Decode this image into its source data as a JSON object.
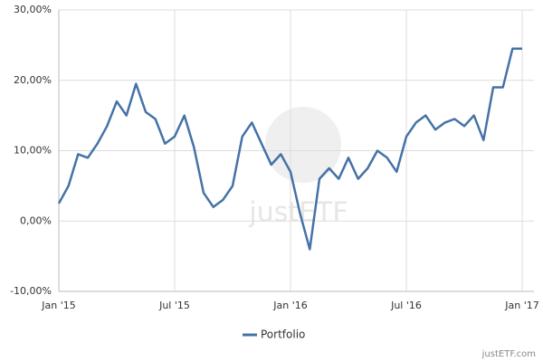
{
  "chart_data": {
    "type": "line",
    "x": [
      "2015-01",
      "2015-01",
      "2015-02",
      "2015-02",
      "2015-03",
      "2015-03",
      "2015-04",
      "2015-04",
      "2015-05",
      "2015-05",
      "2015-06",
      "2015-06",
      "2015-07",
      "2015-07",
      "2015-08",
      "2015-08",
      "2015-09",
      "2015-09",
      "2015-10",
      "2015-10",
      "2015-11",
      "2015-11",
      "2015-12",
      "2015-12",
      "2016-01",
      "2016-01",
      "2016-02",
      "2016-02",
      "2016-03",
      "2016-03",
      "2016-04",
      "2016-04",
      "2016-05",
      "2016-05",
      "2016-06",
      "2016-06",
      "2016-07",
      "2016-07",
      "2016-08",
      "2016-08",
      "2016-09",
      "2016-09",
      "2016-10",
      "2016-10",
      "2016-11",
      "2016-11",
      "2016-12",
      "2016-12",
      "2017-01"
    ],
    "series": [
      {
        "name": "Portfolio",
        "color": "#4572a7",
        "values": [
          2.5,
          5,
          9.5,
          9,
          11,
          13.5,
          17,
          15,
          19.5,
          15.5,
          14.5,
          11,
          12,
          15,
          10.5,
          4,
          2,
          3,
          5,
          12,
          14,
          11,
          8,
          9.5,
          7,
          1,
          -4,
          6,
          7.5,
          6,
          9,
          6,
          7.5,
          10,
          9,
          7,
          12,
          14,
          15,
          13,
          14,
          14.5,
          13.5,
          15,
          11.5,
          19,
          19,
          24.5,
          24.5
        ]
      }
    ],
    "ylim": [
      -10,
      30
    ],
    "yticks": [
      {
        "value": -10,
        "label": "-10,00%"
      },
      {
        "value": 0,
        "label": "0,00%"
      },
      {
        "value": 10,
        "label": "10,00%"
      },
      {
        "value": 20,
        "label": "20,00%"
      },
      {
        "value": 30,
        "label": "30,00%"
      }
    ],
    "xticks": [
      {
        "value": "2015-01",
        "label": "Jan '15"
      },
      {
        "value": "2015-07",
        "label": "Jul '15"
      },
      {
        "value": "2016-01",
        "label": "Jan '16"
      },
      {
        "value": "2016-07",
        "label": "Jul '16"
      },
      {
        "value": "2017-01",
        "label": "Jan '17"
      }
    ],
    "grid": true,
    "legend": "bottom",
    "watermark": "justETF",
    "credit": "justETF.com"
  }
}
